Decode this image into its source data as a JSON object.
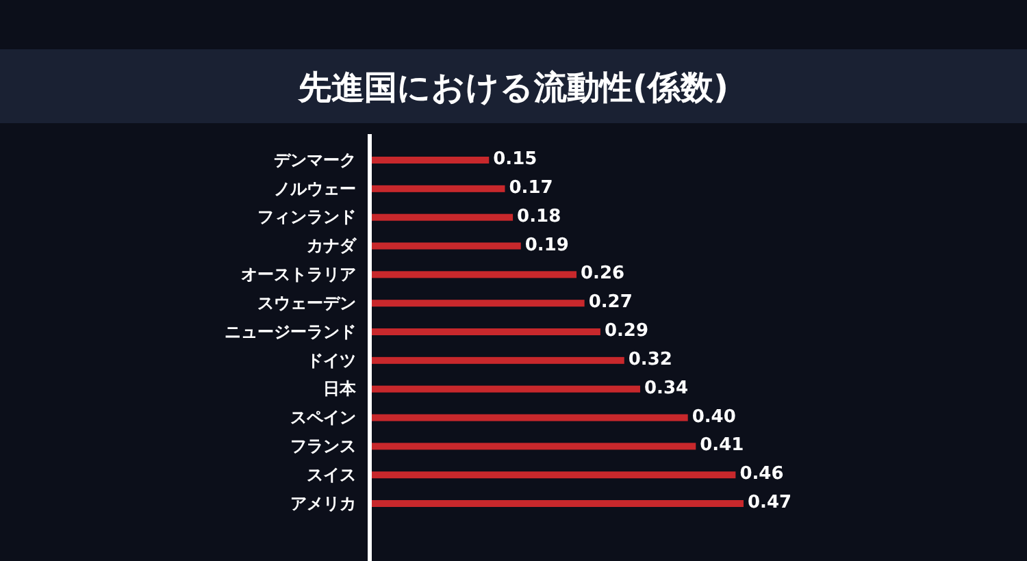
{
  "chart_data": {
    "type": "bar",
    "orientation": "horizontal",
    "title": "先進国における流動性(係数)",
    "categories": [
      "デンマーク",
      "ノルウェー",
      "フィンランド",
      "カナダ",
      "オーストラリア",
      "スウェーデン",
      "ニュージーランド",
      "ドイツ",
      "日本",
      "スペイン",
      "フランス",
      "スイス",
      "アメリカ"
    ],
    "values": [
      0.15,
      0.17,
      0.18,
      0.19,
      0.26,
      0.27,
      0.29,
      0.32,
      0.34,
      0.4,
      0.41,
      0.46,
      0.47
    ],
    "value_labels": [
      "0.15",
      "0.17",
      "0.18",
      "0.19",
      "0.26",
      "0.27",
      "0.29",
      "0.32",
      "0.34",
      "0.40",
      "0.41",
      "0.46",
      "0.47"
    ],
    "color": "#c8282c"
  }
}
